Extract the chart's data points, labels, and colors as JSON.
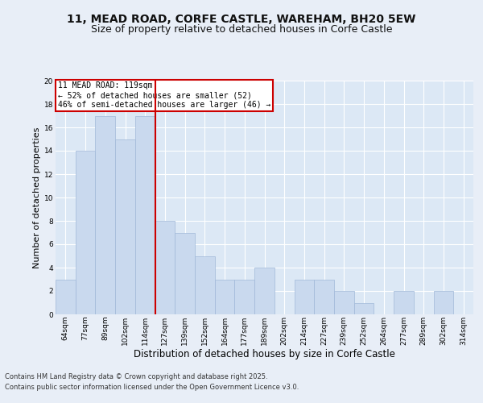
{
  "title": "11, MEAD ROAD, CORFE CASTLE, WAREHAM, BH20 5EW",
  "subtitle": "Size of property relative to detached houses in Corfe Castle",
  "xlabel": "Distribution of detached houses by size in Corfe Castle",
  "ylabel": "Number of detached properties",
  "categories": [
    "64sqm",
    "77sqm",
    "89sqm",
    "102sqm",
    "114sqm",
    "127sqm",
    "139sqm",
    "152sqm",
    "164sqm",
    "177sqm",
    "189sqm",
    "202sqm",
    "214sqm",
    "227sqm",
    "239sqm",
    "252sqm",
    "264sqm",
    "277sqm",
    "289sqm",
    "302sqm",
    "314sqm"
  ],
  "values": [
    3,
    14,
    17,
    15,
    17,
    8,
    7,
    5,
    3,
    3,
    4,
    0,
    3,
    3,
    2,
    1,
    0,
    2,
    0,
    2,
    0
  ],
  "bar_color": "#c9d9ee",
  "bar_edge_color": "#a0b8d8",
  "vline_x_index": 4,
  "vline_color": "#cc0000",
  "annotation_text": "11 MEAD ROAD: 119sqm\n← 52% of detached houses are smaller (52)\n46% of semi-detached houses are larger (46) →",
  "annotation_box_color": "#ffffff",
  "annotation_box_edge": "#cc0000",
  "ylim": [
    0,
    20
  ],
  "yticks": [
    0,
    2,
    4,
    6,
    8,
    10,
    12,
    14,
    16,
    18,
    20
  ],
  "background_color": "#e8eef7",
  "plot_bg_color": "#dce8f5",
  "grid_color": "#ffffff",
  "footer_line1": "Contains HM Land Registry data © Crown copyright and database right 2025.",
  "footer_line2": "Contains public sector information licensed under the Open Government Licence v3.0.",
  "title_fontsize": 10,
  "subtitle_fontsize": 9,
  "tick_fontsize": 6.5,
  "ylabel_fontsize": 8,
  "xlabel_fontsize": 8.5,
  "footer_fontsize": 6,
  "annotation_fontsize": 7
}
